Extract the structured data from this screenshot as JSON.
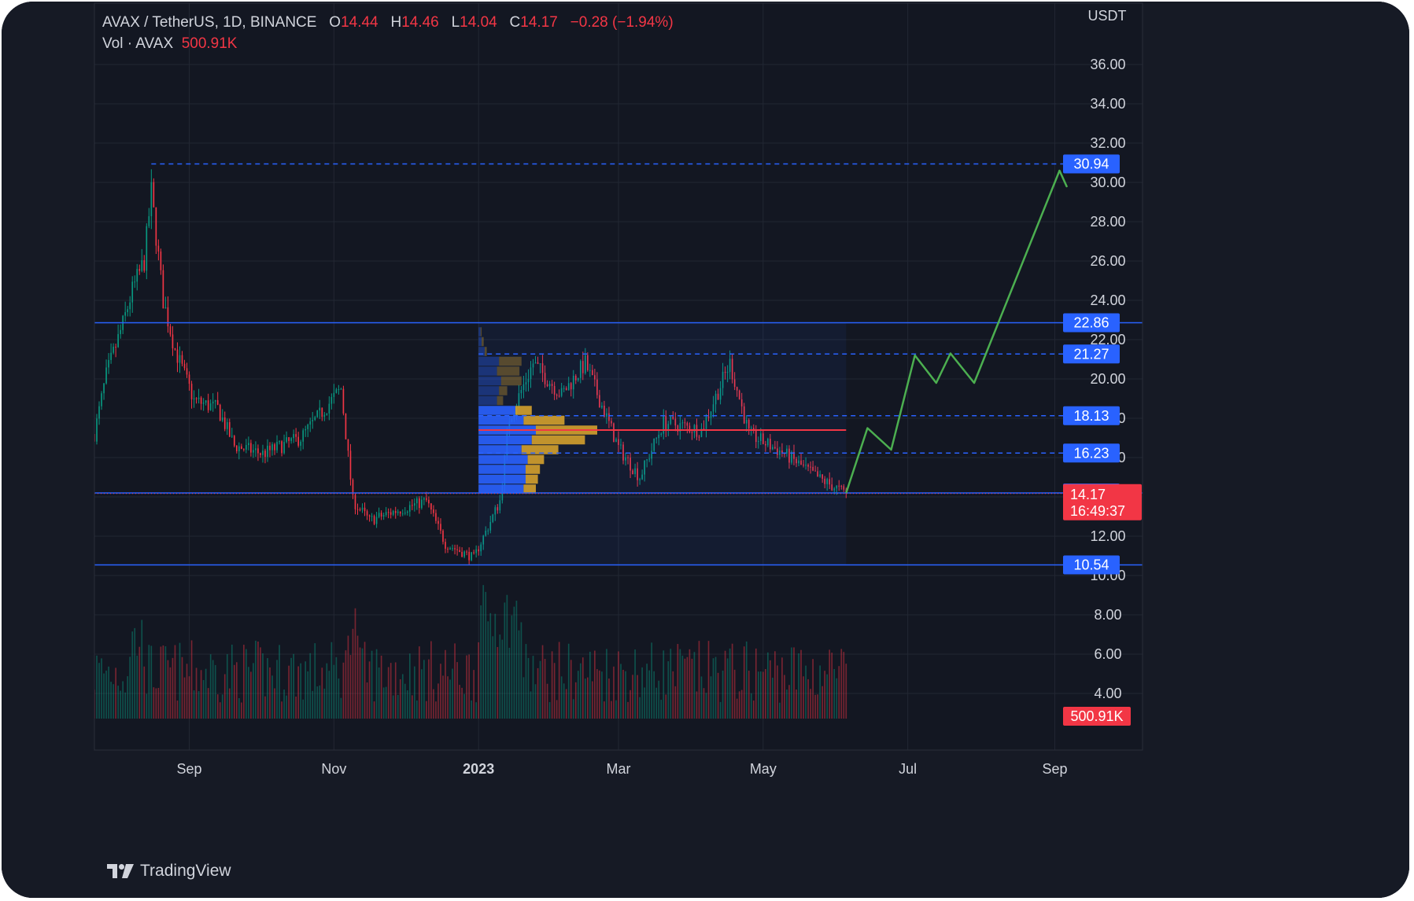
{
  "header": {
    "symbol": "AVAX / TetherUS, 1D, BINANCE",
    "o_label": "O",
    "o_value": "14.44",
    "h_label": "H",
    "h_value": "14.46",
    "l_label": "L",
    "l_value": "14.04",
    "c_label": "C",
    "c_value": "14.17",
    "change": "−0.28 (−1.94%)",
    "vol_label": "Vol · AVAX",
    "vol_value": "500.91K"
  },
  "brand": "TradingView",
  "colors": {
    "background": "#161a25",
    "up": "#089981",
    "down": "#f23645",
    "level_line": "#2962ff",
    "projection": "#4caf50",
    "poc": "#f23645",
    "profile_up": "#2962ff",
    "profile_down": "#d4a12d",
    "text": "#d1d4dc"
  },
  "chart_data": {
    "type": "candlestick",
    "title": "AVAX / TetherUS, 1D, BINANCE",
    "currency_label": "USDT",
    "ylim": [
      2.8,
      38.0
    ],
    "y_ticks": [
      4,
      6,
      8,
      10,
      12,
      14,
      16,
      18,
      20,
      22,
      24,
      26,
      28,
      30,
      32,
      34,
      36
    ],
    "x_ticks": [
      "Sep",
      "Nov",
      "2023",
      "Mar",
      "May",
      "Jul",
      "Sep"
    ],
    "x_range_dates": [
      "2022-07-23",
      "2023-10-08"
    ],
    "price_path_anchors": [
      {
        "date": "2022-07-23",
        "price": 17.2
      },
      {
        "date": "2022-07-28",
        "price": 20.2
      },
      {
        "date": "2022-08-04",
        "price": 22.8
      },
      {
        "date": "2022-08-08",
        "price": 24.5
      },
      {
        "date": "2022-08-13",
        "price": 26.0
      },
      {
        "date": "2022-08-16",
        "price": 29.5
      },
      {
        "date": "2022-08-21",
        "price": 24.0
      },
      {
        "date": "2022-08-26",
        "price": 21.5
      },
      {
        "date": "2022-09-03",
        "price": 18.9
      },
      {
        "date": "2022-09-13",
        "price": 18.5
      },
      {
        "date": "2022-09-20",
        "price": 16.6
      },
      {
        "date": "2022-10-02",
        "price": 16.2
      },
      {
        "date": "2022-10-18",
        "price": 17.0
      },
      {
        "date": "2022-11-04",
        "price": 19.5
      },
      {
        "date": "2022-11-09",
        "price": 13.8
      },
      {
        "date": "2022-11-16",
        "price": 12.8
      },
      {
        "date": "2022-11-25",
        "price": 13.2
      },
      {
        "date": "2022-12-10",
        "price": 13.8
      },
      {
        "date": "2022-12-18",
        "price": 11.6
      },
      {
        "date": "2022-12-30",
        "price": 10.9
      },
      {
        "date": "2023-01-10",
        "price": 13.8
      },
      {
        "date": "2023-01-14",
        "price": 18.0
      },
      {
        "date": "2023-01-24",
        "price": 20.8
      },
      {
        "date": "2023-02-05",
        "price": 19.2
      },
      {
        "date": "2023-02-15",
        "price": 20.8
      },
      {
        "date": "2023-03-01",
        "price": 16.5
      },
      {
        "date": "2023-03-10",
        "price": 15.0
      },
      {
        "date": "2023-03-20",
        "price": 17.8
      },
      {
        "date": "2023-04-05",
        "price": 17.4
      },
      {
        "date": "2023-04-17",
        "price": 20.8
      },
      {
        "date": "2023-04-25",
        "price": 17.2
      },
      {
        "date": "2023-05-10",
        "price": 16.2
      },
      {
        "date": "2023-05-25",
        "price": 14.9
      },
      {
        "date": "2023-06-05",
        "price": 14.17
      }
    ],
    "period_high": {
      "date": "2022-08-16",
      "price": 30.94
    },
    "period_low": {
      "date": "2022-12-30",
      "price": 10.54
    },
    "last_price": 14.17,
    "volume_last": "500.91K",
    "volume_profile": {
      "from_date": "2023-01-01",
      "to_date": "2023-06-05",
      "price_low": 14.2,
      "price_high": 22.86,
      "poc_price": 17.4,
      "rows": [
        {
          "price": 14.4,
          "up": 0.44,
          "down": 0.12
        },
        {
          "price": 14.9,
          "up": 0.46,
          "down": 0.12
        },
        {
          "price": 15.4,
          "up": 0.46,
          "down": 0.14
        },
        {
          "price": 15.9,
          "up": 0.48,
          "down": 0.16
        },
        {
          "price": 16.4,
          "up": 0.42,
          "down": 0.36
        },
        {
          "price": 16.9,
          "up": 0.52,
          "down": 0.52
        },
        {
          "price": 17.4,
          "up": 0.56,
          "down": 0.6
        },
        {
          "price": 17.9,
          "up": 0.44,
          "down": 0.4
        },
        {
          "price": 18.4,
          "up": 0.36,
          "down": 0.16
        },
        {
          "price": 18.9,
          "up": 0.18,
          "down": 0.06
        },
        {
          "price": 19.4,
          "up": 0.2,
          "down": 0.08
        },
        {
          "price": 19.9,
          "up": 0.22,
          "down": 0.2
        },
        {
          "price": 20.4,
          "up": 0.18,
          "down": 0.22
        },
        {
          "price": 20.9,
          "up": 0.2,
          "down": 0.22
        },
        {
          "price": 21.4,
          "up": 0.06,
          "down": 0.02
        },
        {
          "price": 21.9,
          "up": 0.03,
          "down": 0.02
        },
        {
          "price": 22.4,
          "up": 0.02,
          "down": 0.01
        }
      ]
    },
    "levels": [
      {
        "price": 30.94,
        "label": "30.94",
        "style": "dashed",
        "from_date": "2022-08-16"
      },
      {
        "price": 22.86,
        "label": "22.86",
        "style": "solid",
        "from_date": "2022-07-23"
      },
      {
        "price": 21.27,
        "label": "21.27",
        "style": "dashed",
        "from_date": "2023-01-01"
      },
      {
        "price": 18.13,
        "label": "18.13",
        "style": "dashed",
        "from_date": "2023-01-01"
      },
      {
        "price": 16.23,
        "label": "16.23",
        "style": "dashed",
        "from_date": "2023-01-01"
      },
      {
        "price": 14.2,
        "label": "14.20",
        "style": "solid",
        "from_date": "2023-01-01"
      },
      {
        "price": 10.54,
        "label": "10.54",
        "style": "solid",
        "from_date": "2022-07-23"
      }
    ],
    "last_price_label": {
      "price": 14.17,
      "label": "14.17",
      "countdown": "16:49:37"
    },
    "projection": [
      {
        "date": "2023-06-05",
        "price": 14.2
      },
      {
        "date": "2023-06-14",
        "price": 17.5
      },
      {
        "date": "2023-06-24",
        "price": 16.4
      },
      {
        "date": "2023-07-04",
        "price": 21.2
      },
      {
        "date": "2023-07-13",
        "price": 19.8
      },
      {
        "date": "2023-07-19",
        "price": 21.3
      },
      {
        "date": "2023-07-29",
        "price": 19.8
      },
      {
        "date": "2023-09-03",
        "price": 30.6
      }
    ],
    "projection_arrow_end": {
      "date": "2023-09-06",
      "price": 29.8
    }
  }
}
